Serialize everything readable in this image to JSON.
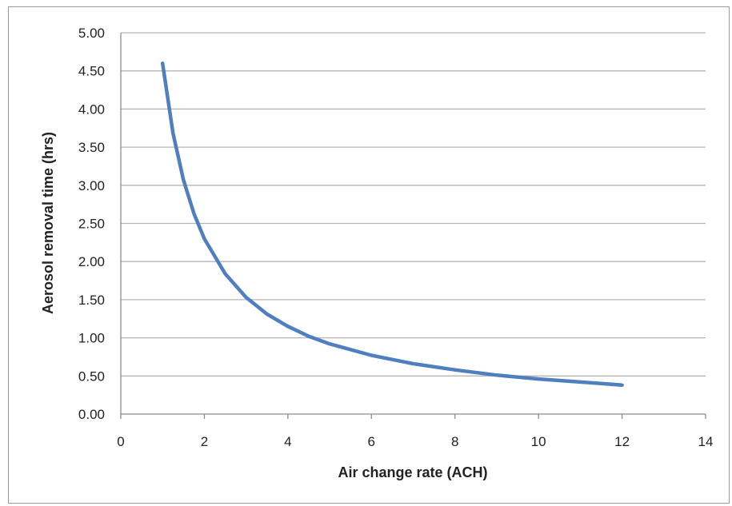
{
  "chart_data": {
    "type": "line",
    "xlabel": "Air change rate (ACH)",
    "ylabel": "Aerosol removal time (hrs)",
    "xlim": [
      0,
      14
    ],
    "ylim": [
      0,
      5
    ],
    "x_ticks": [
      "0",
      "2",
      "4",
      "6",
      "8",
      "10",
      "12",
      "14"
    ],
    "y_ticks": [
      "0.00",
      "0.50",
      "1.00",
      "1.50",
      "2.00",
      "2.50",
      "3.00",
      "3.50",
      "4.00",
      "4.50",
      "5.00"
    ],
    "grid": "horizontal",
    "line_color": "#4f7fbf",
    "series": [
      {
        "x": [
          1,
          1.25,
          1.5,
          1.75,
          2,
          2.5,
          3,
          3.5,
          4,
          4.5,
          5,
          6,
          7,
          8,
          9,
          10,
          11,
          12
        ],
        "values": [
          4.6,
          3.68,
          3.07,
          2.63,
          2.3,
          1.84,
          1.53,
          1.31,
          1.15,
          1.02,
          0.92,
          0.77,
          0.66,
          0.58,
          0.51,
          0.46,
          0.42,
          0.38
        ]
      }
    ]
  }
}
